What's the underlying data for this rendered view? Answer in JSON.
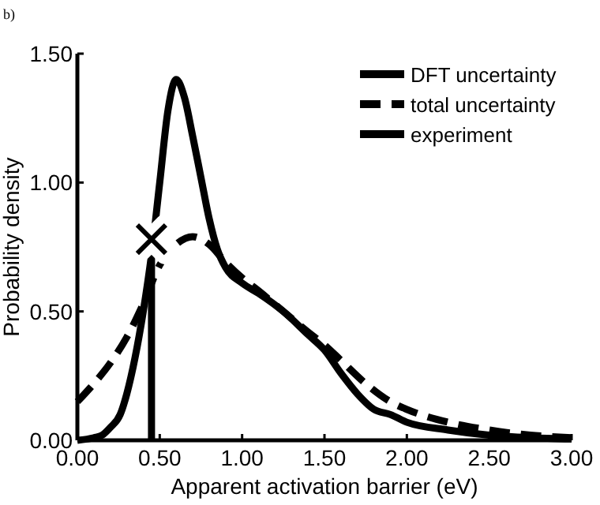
{
  "chart_data": {
    "type": "line",
    "xlabel": "Apparent activation barrier (eV)",
    "ylabel": "Probability density",
    "annotations": [
      "b)"
    ],
    "xlim": [
      0,
      3
    ],
    "ylim": [
      0,
      1.5
    ],
    "xticks": [
      {
        "value": 0,
        "label": "0.00"
      },
      {
        "value": 0.5,
        "label": "0.50"
      },
      {
        "value": 1,
        "label": "1.00"
      },
      {
        "value": 1.5,
        "label": "1.50"
      },
      {
        "value": 2,
        "label": "2.00"
      },
      {
        "value": 2.5,
        "label": "2.50"
      },
      {
        "value": 3,
        "label": "3.00"
      }
    ],
    "yticks": [
      {
        "value": 0,
        "label": "0.00"
      },
      {
        "value": 0.5,
        "label": "0.50"
      },
      {
        "value": 1,
        "label": "1.00"
      },
      {
        "value": 1.5,
        "label": "1.50"
      }
    ],
    "legend": "top right",
    "grid": false,
    "series": [
      {
        "name": "DFT uncertainty",
        "color": "#000000",
        "line_style": "solid",
        "x": [
          0,
          0.1,
          0.15,
          0.2,
          0.26,
          0.3,
          0.35,
          0.4,
          0.45,
          0.5,
          0.55,
          0.6,
          0.65,
          0.7,
          0.75,
          0.8,
          0.85,
          0.9,
          1.0,
          1.1,
          1.25,
          1.4,
          1.5,
          1.6,
          1.7,
          1.8,
          1.9,
          2.0,
          2.25,
          2.5,
          2.75,
          3.0
        ],
        "values": [
          0,
          0.01,
          0.02,
          0.05,
          0.1,
          0.18,
          0.32,
          0.5,
          0.72,
          1.0,
          1.28,
          1.4,
          1.33,
          1.18,
          1.02,
          0.86,
          0.74,
          0.67,
          0.61,
          0.57,
          0.5,
          0.41,
          0.35,
          0.26,
          0.18,
          0.12,
          0.1,
          0.07,
          0.04,
          0.02,
          0.01,
          0.005
        ]
      },
      {
        "name": "total uncertainty",
        "color": "#000000",
        "line_style": "dashed",
        "x": [
          0,
          0.1,
          0.2,
          0.3,
          0.4,
          0.5,
          0.6,
          0.7,
          0.8,
          0.9,
          1.0,
          1.1,
          1.25,
          1.4,
          1.5,
          1.6,
          1.75,
          1.9,
          2.0,
          2.25,
          2.5,
          2.75,
          3.0
        ],
        "values": [
          0.15,
          0.22,
          0.3,
          0.4,
          0.53,
          0.68,
          0.76,
          0.79,
          0.76,
          0.69,
          0.63,
          0.58,
          0.5,
          0.42,
          0.37,
          0.31,
          0.22,
          0.15,
          0.12,
          0.07,
          0.04,
          0.02,
          0.01
        ]
      },
      {
        "name": "experiment",
        "type": "lollipop",
        "color": "#000000",
        "line_style": "solid",
        "marker": "cross",
        "x": [
          0.45
        ],
        "values": [
          0.78
        ]
      }
    ]
  }
}
